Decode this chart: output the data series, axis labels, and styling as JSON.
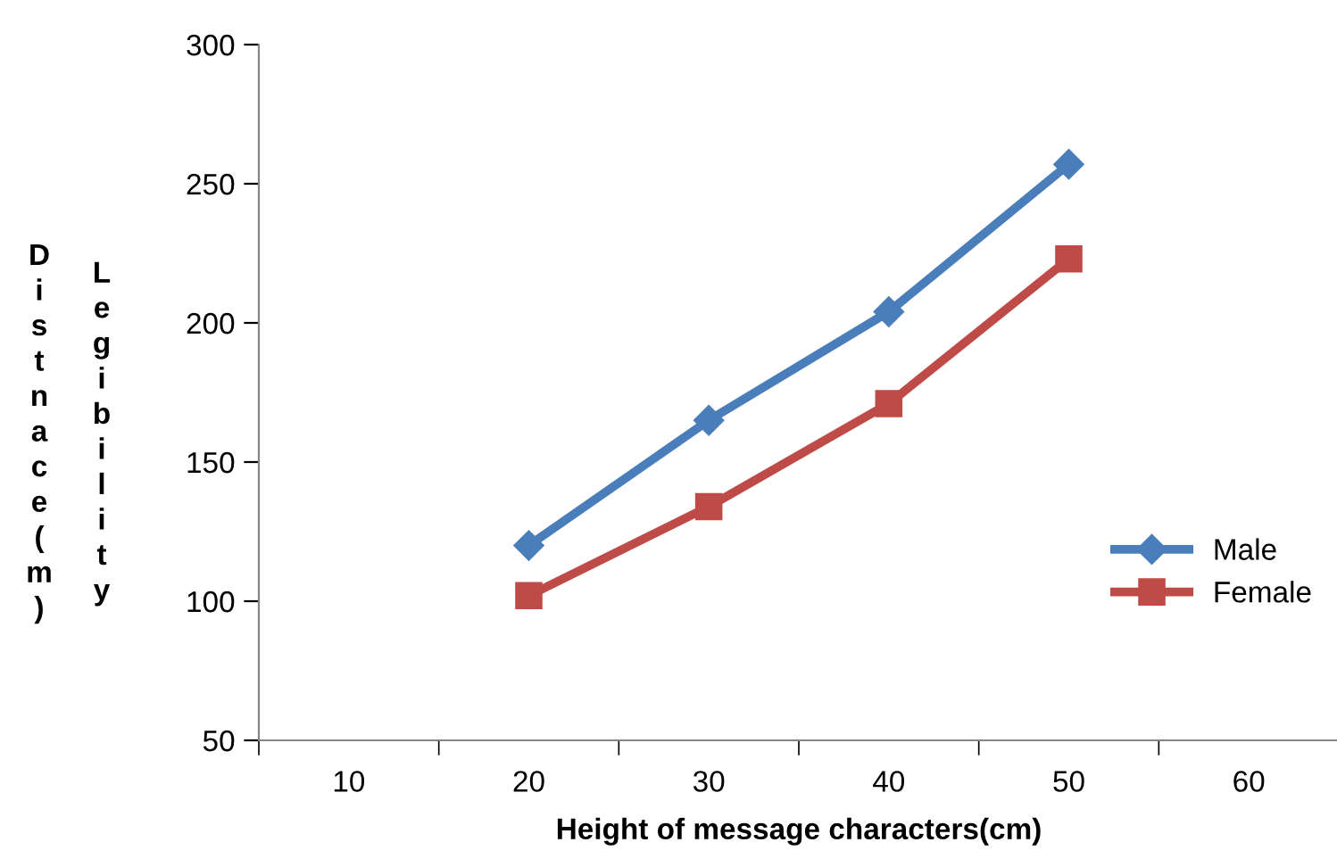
{
  "chart_data": {
    "type": "line",
    "xlabel": "Height of message characters(cm)",
    "ylabel": "Legibility Distnace(m)",
    "categories": [
      "10",
      "20",
      "30",
      "40",
      "50",
      "60"
    ],
    "series": [
      {
        "name": "Male",
        "color": "#4a7ebb",
        "marker": "diamond",
        "values": [
          null,
          120,
          165,
          204,
          257,
          null
        ]
      },
      {
        "name": "Female",
        "color": "#be4b48",
        "marker": "square",
        "values": [
          null,
          102,
          134,
          171,
          223,
          null
        ]
      }
    ],
    "ylim": [
      50,
      300
    ],
    "yticks": [
      50,
      100,
      150,
      200,
      250,
      300
    ],
    "grid": false,
    "legend": "right",
    "line_style": "solid"
  }
}
